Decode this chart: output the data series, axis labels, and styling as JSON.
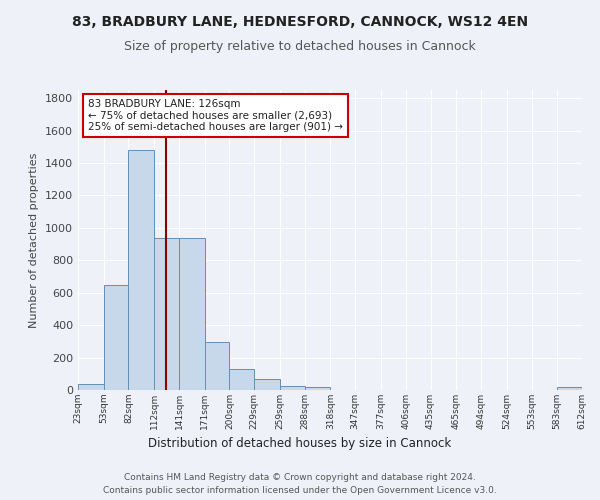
{
  "title1": "83, BRADBURY LANE, HEDNESFORD, CANNOCK, WS12 4EN",
  "title2": "Size of property relative to detached houses in Cannock",
  "xlabel": "Distribution of detached houses by size in Cannock",
  "ylabel": "Number of detached properties",
  "annotation_line1": "83 BRADBURY LANE: 126sqm",
  "annotation_line2": "← 75% of detached houses are smaller (2,693)",
  "annotation_line3": "25% of semi-detached houses are larger (901) →",
  "property_size": 126,
  "bar_color": "#c8d8eb",
  "bar_edge_color": "#6090b8",
  "vline_color": "#8b0000",
  "background_color": "#eef2f8",
  "bin_edges": [
    23,
    53,
    82,
    112,
    141,
    171,
    200,
    229,
    259,
    288,
    318,
    347,
    377,
    406,
    435,
    465,
    494,
    524,
    553,
    583,
    612
  ],
  "bar_heights": [
    35,
    650,
    1480,
    940,
    940,
    295,
    130,
    68,
    22,
    18,
    0,
    0,
    0,
    0,
    0,
    0,
    0,
    0,
    0,
    18
  ],
  "ylim": [
    0,
    1850
  ],
  "yticks": [
    0,
    200,
    400,
    600,
    800,
    1000,
    1200,
    1400,
    1600,
    1800
  ],
  "footnote1": "Contains HM Land Registry data © Crown copyright and database right 2024.",
  "footnote2": "Contains public sector information licensed under the Open Government Licence v3.0.",
  "annotation_box_color": "#ffffff",
  "annotation_box_edge_color": "#cc0000",
  "title1_fontsize": 10,
  "title2_fontsize": 9
}
